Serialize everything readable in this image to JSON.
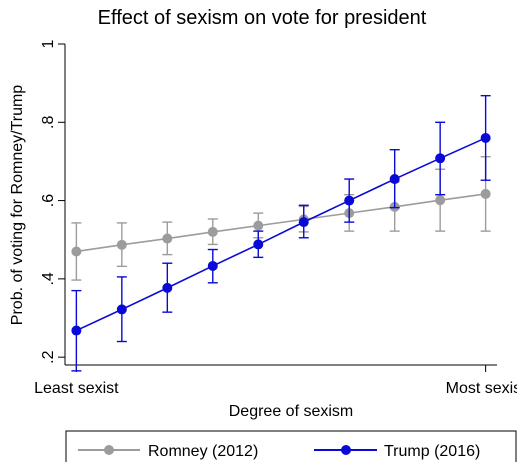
{
  "chart_data": {
    "type": "line",
    "title": "Effect of sexism on vote for president",
    "xlabel": "Degree of sexism",
    "ylabel": "Prob. of voting for Romney/Trump",
    "x_ticks": [
      {
        "x": 0,
        "label": "Least sexist"
      },
      {
        "x": 9,
        "label": "Most sexist"
      }
    ],
    "y_ticks": [
      {
        "y": 0.2,
        "label": ".2"
      },
      {
        "y": 0.4,
        "label": ".4"
      },
      {
        "y": 0.6,
        "label": ".6"
      },
      {
        "y": 0.8,
        "label": ".8"
      },
      {
        "y": 1.0,
        "label": "1"
      }
    ],
    "xlim": [
      -0.25,
      9.25
    ],
    "ylim": [
      0.18,
      1.0
    ],
    "legend_position": "bottom",
    "grid": false,
    "x": [
      0,
      1,
      2,
      3,
      4,
      5,
      6,
      7,
      8,
      9
    ],
    "series": [
      {
        "name": "Romney (2012)",
        "color": "#9c9c9c",
        "values": [
          0.47,
          0.487,
          0.503,
          0.52,
          0.536,
          0.552,
          0.568,
          0.584,
          0.601,
          0.617
        ],
        "ci_low": [
          0.397,
          0.432,
          0.462,
          0.488,
          0.505,
          0.52,
          0.522,
          0.522,
          0.522,
          0.522
        ],
        "ci_high": [
          0.543,
          0.543,
          0.545,
          0.553,
          0.568,
          0.585,
          0.615,
          0.648,
          0.68,
          0.712
        ]
      },
      {
        "name": "Trump (2016)",
        "color": "#0a0ad6",
        "values": [
          0.268,
          0.322,
          0.377,
          0.433,
          0.488,
          0.545,
          0.6,
          0.655,
          0.708,
          0.76
        ],
        "ci_low": [
          0.165,
          0.24,
          0.315,
          0.39,
          0.455,
          0.505,
          0.545,
          0.582,
          0.615,
          0.652
        ],
        "ci_high": [
          0.37,
          0.405,
          0.44,
          0.475,
          0.522,
          0.588,
          0.655,
          0.73,
          0.8,
          0.868
        ]
      }
    ]
  }
}
